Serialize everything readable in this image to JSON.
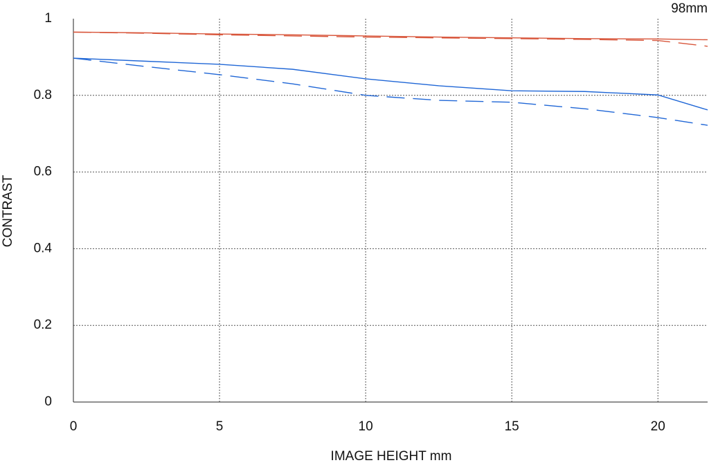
{
  "chart_data": {
    "type": "line",
    "annotation": "98mm",
    "xlabel": "IMAGE HEIGHT  mm",
    "ylabel": "CONTRAST",
    "x": [
      0,
      2.5,
      5,
      7.5,
      10,
      12.5,
      15,
      17.5,
      20,
      21.7
    ],
    "series": [
      {
        "color": "#d8553a",
        "style": "solid",
        "values": [
          0.965,
          0.963,
          0.96,
          0.958,
          0.955,
          0.952,
          0.95,
          0.948,
          0.947,
          0.945
        ]
      },
      {
        "color": "#d8553a",
        "style": "dashed",
        "values": [
          0.965,
          0.962,
          0.958,
          0.955,
          0.952,
          0.95,
          0.948,
          0.946,
          0.943,
          0.928
        ]
      },
      {
        "color": "#1f66d6",
        "style": "solid",
        "values": [
          0.897,
          0.889,
          0.881,
          0.868,
          0.843,
          0.825,
          0.812,
          0.81,
          0.801,
          0.762
        ]
      },
      {
        "color": "#1f66d6",
        "style": "dashed",
        "values": [
          0.897,
          0.875,
          0.854,
          0.83,
          0.8,
          0.787,
          0.782,
          0.765,
          0.742,
          0.722
        ]
      }
    ],
    "xlim": [
      0,
      21.7
    ],
    "ylim": [
      0,
      1
    ],
    "xticks": [
      0,
      5,
      10,
      15,
      20
    ],
    "yticks": [
      0,
      0.2,
      0.4,
      0.6,
      0.8,
      1
    ],
    "grid": true
  }
}
